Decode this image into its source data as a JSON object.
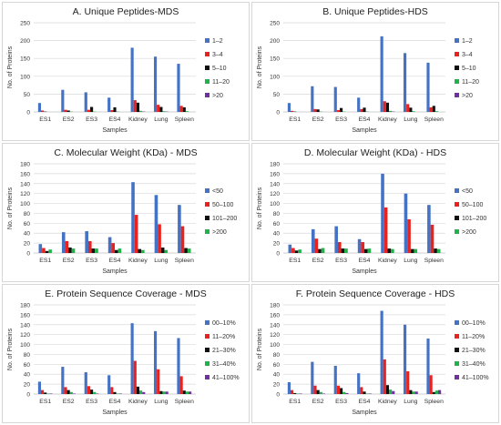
{
  "colors": {
    "blue": "#4472c4",
    "red": "#e8231f",
    "black": "#111111",
    "green": "#21b24b",
    "purple": "#7030a0",
    "grid": "#d9d9d9",
    "axis": "#bfbfbf",
    "text": "#333333"
  },
  "chart_data": [
    {
      "type": "bar",
      "title": "A. Unique Peptides-MDS",
      "xlabel": "Samples",
      "ylabel": "No. of Proteins",
      "ylim": [
        0,
        250
      ],
      "yticks": [
        0,
        50,
        100,
        150,
        200,
        250
      ],
      "grid": true,
      "legend": "right",
      "categories": [
        "ES1",
        "ES2",
        "ES3",
        "ES4",
        "Kidney",
        "Lung",
        "Spleen"
      ],
      "series": [
        {
          "name": "1–2",
          "color": "blue",
          "values": [
            25,
            62,
            55,
            40,
            180,
            155,
            135
          ]
        },
        {
          "name": "3–4",
          "color": "red",
          "values": [
            4,
            6,
            6,
            5,
            33,
            20,
            17
          ]
        },
        {
          "name": "5–10",
          "color": "black",
          "values": [
            1,
            4,
            14,
            13,
            26,
            14,
            13
          ]
        },
        {
          "name": "11–20",
          "color": "green",
          "values": [
            0,
            1,
            1,
            1,
            3,
            2,
            2
          ]
        },
        {
          "name": ">20",
          "color": "purple",
          "values": [
            0,
            0,
            0,
            0,
            1,
            1,
            0
          ]
        }
      ]
    },
    {
      "type": "bar",
      "title": "B. Unique Peptides-HDS",
      "xlabel": "Samples",
      "ylabel": "No. of Proteins",
      "ylim": [
        0,
        250
      ],
      "yticks": [
        0,
        50,
        100,
        150,
        200,
        250
      ],
      "grid": true,
      "legend": "right",
      "categories": [
        "ES1",
        "ES2",
        "ES3",
        "ES4",
        "Kidney",
        "Lung",
        "Spleen"
      ],
      "series": [
        {
          "name": "1–2",
          "color": "blue",
          "values": [
            25,
            72,
            70,
            40,
            212,
            165,
            138
          ]
        },
        {
          "name": "3–4",
          "color": "red",
          "values": [
            3,
            8,
            5,
            8,
            30,
            22,
            13
          ]
        },
        {
          "name": "5–10",
          "color": "black",
          "values": [
            1,
            7,
            11,
            12,
            26,
            12,
            17
          ]
        },
        {
          "name": "11–20",
          "color": "green",
          "values": [
            0,
            1,
            1,
            1,
            3,
            2,
            2
          ]
        },
        {
          "name": ">20",
          "color": "purple",
          "values": [
            0,
            0,
            0,
            0,
            1,
            0,
            0
          ]
        }
      ]
    },
    {
      "type": "bar",
      "title": "C. Molecular Weight (KDa) - MDS",
      "xlabel": "Samples",
      "ylabel": "No. of Proteins",
      "ylim": [
        0,
        180
      ],
      "yticks": [
        0,
        20,
        40,
        60,
        80,
        100,
        120,
        140,
        160,
        180
      ],
      "grid": true,
      "legend": "right",
      "categories": [
        "ES1",
        "ES2",
        "ES3",
        "ES4",
        "Kidney",
        "Lung",
        "Spleen"
      ],
      "series": [
        {
          "name": "<50",
          "color": "blue",
          "values": [
            18,
            42,
            44,
            32,
            143,
            117,
            97
          ]
        },
        {
          "name": "50–100",
          "color": "red",
          "values": [
            10,
            24,
            24,
            20,
            77,
            58,
            54
          ]
        },
        {
          "name": "101–200",
          "color": "black",
          "values": [
            4,
            11,
            9,
            6,
            8,
            11,
            10
          ]
        },
        {
          "name": ">200",
          "color": "green",
          "values": [
            7,
            9,
            9,
            9,
            6,
            6,
            9
          ]
        }
      ]
    },
    {
      "type": "bar",
      "title": "D. Molecular Weight (KDa) - HDS",
      "xlabel": "Samples",
      "ylabel": "No. of Proteins",
      "ylim": [
        0,
        180
      ],
      "yticks": [
        0,
        20,
        40,
        60,
        80,
        100,
        120,
        140,
        160,
        180
      ],
      "grid": true,
      "legend": "right",
      "categories": [
        "ES1",
        "ES2",
        "ES3",
        "ES4",
        "Kidney",
        "Lung",
        "Spleen"
      ],
      "series": [
        {
          "name": "<50",
          "color": "blue",
          "values": [
            17,
            48,
            54,
            28,
            160,
            120,
            97
          ]
        },
        {
          "name": "50–100",
          "color": "red",
          "values": [
            10,
            29,
            22,
            22,
            92,
            68,
            57
          ]
        },
        {
          "name": "101–200",
          "color": "black",
          "values": [
            5,
            8,
            9,
            8,
            9,
            8,
            9
          ]
        },
        {
          "name": ">200",
          "color": "green",
          "values": [
            7,
            10,
            9,
            9,
            8,
            8,
            8
          ]
        }
      ]
    },
    {
      "type": "bar",
      "title": "E. Protein Sequence Coverage - MDS",
      "xlabel": "Samples",
      "ylabel": "No. of Proteins",
      "ylim": [
        0,
        180
      ],
      "yticks": [
        0,
        20,
        40,
        60,
        80,
        100,
        120,
        140,
        160,
        180
      ],
      "grid": true,
      "legend": "right",
      "categories": [
        "ES1",
        "ES2",
        "ES3",
        "ES4",
        "Kidney",
        "Lung",
        "Spleen"
      ],
      "series": [
        {
          "name": "00–10%",
          "color": "blue",
          "values": [
            25,
            55,
            44,
            38,
            143,
            127,
            113
          ]
        },
        {
          "name": "11–20%",
          "color": "red",
          "values": [
            8,
            14,
            16,
            14,
            67,
            50,
            36
          ]
        },
        {
          "name": "21–30%",
          "color": "black",
          "values": [
            3,
            8,
            9,
            4,
            15,
            6,
            7
          ]
        },
        {
          "name": "31–40%",
          "color": "green",
          "values": [
            1,
            4,
            4,
            1,
            7,
            5,
            5
          ]
        },
        {
          "name": "41–100%",
          "color": "purple",
          "values": [
            1,
            1,
            1,
            1,
            4,
            5,
            5
          ]
        }
      ]
    },
    {
      "type": "bar",
      "title": "F. Protein Sequence Coverage - HDS",
      "xlabel": "Samples",
      "ylabel": "No. of Proteins",
      "ylim": [
        0,
        180
      ],
      "yticks": [
        0,
        20,
        40,
        60,
        80,
        100,
        120,
        140,
        160,
        180
      ],
      "grid": true,
      "legend": "right",
      "categories": [
        "ES1",
        "ES2",
        "ES3",
        "ES4",
        "Kidney",
        "Lung",
        "Spleen"
      ],
      "series": [
        {
          "name": "00–10%",
          "color": "blue",
          "values": [
            24,
            65,
            57,
            42,
            168,
            140,
            112
          ]
        },
        {
          "name": "11–20%",
          "color": "red",
          "values": [
            8,
            17,
            17,
            14,
            70,
            46,
            38
          ]
        },
        {
          "name": "21–30%",
          "color": "black",
          "values": [
            2,
            8,
            12,
            5,
            18,
            8,
            4
          ]
        },
        {
          "name": "31–40%",
          "color": "green",
          "values": [
            1,
            4,
            4,
            1,
            9,
            5,
            7
          ]
        },
        {
          "name": "41–100%",
          "color": "purple",
          "values": [
            1,
            1,
            2,
            1,
            6,
            5,
            8
          ]
        }
      ]
    }
  ]
}
